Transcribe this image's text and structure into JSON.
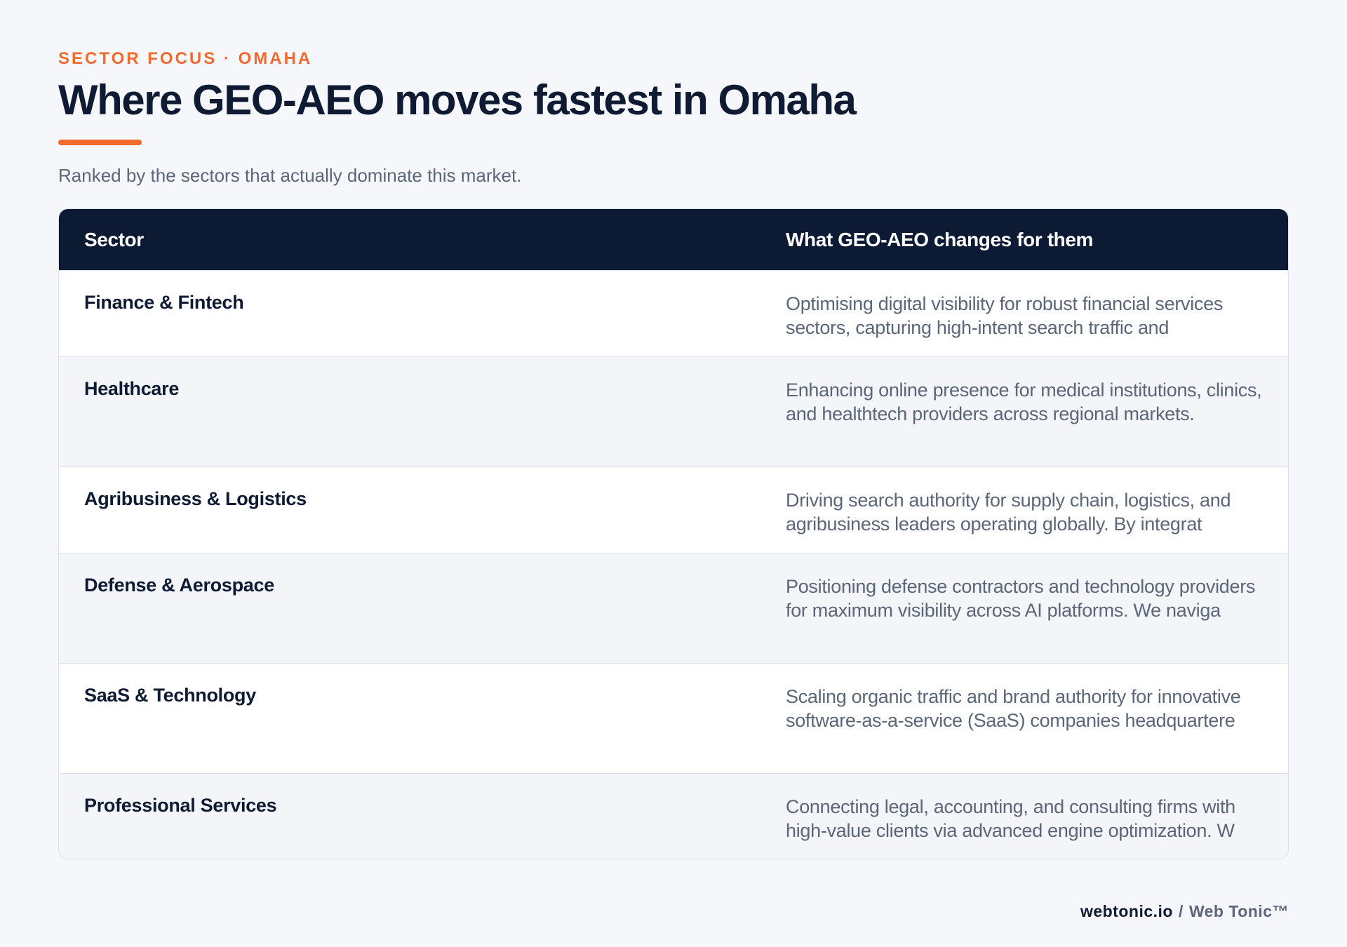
{
  "header": {
    "eyebrow": "SECTOR FOCUS · OMAHA",
    "title": "Where GEO-AEO moves fastest in Omaha",
    "subtitle": "Ranked by the sectors that actually dominate this market."
  },
  "table": {
    "columns": [
      "Sector",
      "What GEO-AEO changes for them"
    ],
    "rows": [
      {
        "sector": "Finance & Fintech",
        "description": "Optimising digital visibility for robust financial services sectors, capturing high-intent search traffic and"
      },
      {
        "sector": "Healthcare",
        "description": "Enhancing online presence for medical institutions, clinics, and healthtech providers across regional markets."
      },
      {
        "sector": "Agribusiness & Logistics",
        "description": "Driving search authority for supply chain, logistics, and agribusiness leaders operating globally. By integrat"
      },
      {
        "sector": "Defense & Aerospace",
        "description": "Positioning defense contractors and technology providers for maximum visibility across AI platforms. We naviga"
      },
      {
        "sector": "SaaS & Technology",
        "description": "Scaling organic traffic and brand authority for innovative software-as-a-service (SaaS) companies headquartere"
      },
      {
        "sector": "Professional Services",
        "description": "Connecting legal, accounting, and consulting firms with high-value clients via advanced engine optimization. W"
      }
    ]
  },
  "footer": {
    "domain": "webtonic.io",
    "separator": "/",
    "brand": "Web Tonic™"
  },
  "colors": {
    "accent": "#f26a2e",
    "navy": "#0c1a33",
    "muted_text": "#5b6678",
    "background": "#f5f7fa"
  }
}
